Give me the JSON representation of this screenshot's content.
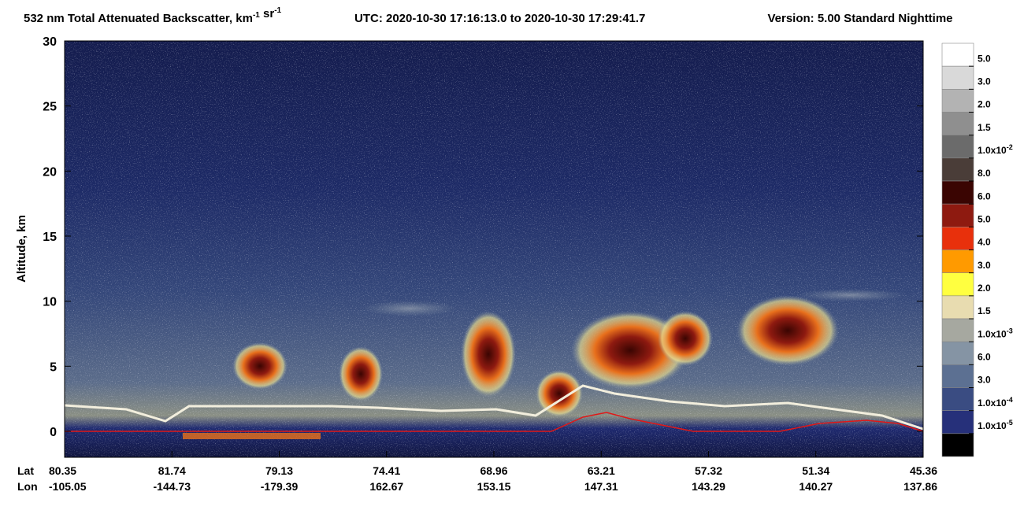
{
  "chart_data": {
    "type": "heatmap",
    "title_parts": [
      {
        "text": "532 nm Total Attenuated Backscatter, km"
      },
      {
        "sup": "-1"
      },
      {
        "text": " sr"
      },
      {
        "sup": "-1"
      }
    ],
    "time_range": "UTC:  2020-10-30 17:16:13.0  to  2020-10-30 17:29:41.7",
    "version": "Version: 5.00  Standard  Nighttime",
    "y_label": "Altitude, km",
    "ylim": [
      -2,
      30
    ],
    "yticks": [
      0,
      5,
      10,
      15,
      20,
      25,
      30
    ],
    "x_row_labels": [
      "Lat",
      "Lon"
    ],
    "lat": [
      "80.35",
      "81.74",
      "79.13",
      "74.41",
      "68.96",
      "63.21",
      "57.32",
      "51.34",
      "45.36"
    ],
    "lon": [
      "-105.05",
      "-144.73",
      "-179.39",
      "162.67",
      "153.15",
      "147.31",
      "143.29",
      "140.27",
      "137.86"
    ],
    "colorbar": {
      "colors": [
        "#ffffff",
        "#d9d9d9",
        "#b3b3b3",
        "#8f8f8f",
        "#6b6b6b",
        "#4a3d38",
        "#3a0502",
        "#8e1a10",
        "#e8300c",
        "#ff9a00",
        "#ffff40",
        "#e8dcb0",
        "#a6a8a0",
        "#8594a4",
        "#5c7092",
        "#3a4c82",
        "#26307a",
        "#000000"
      ],
      "labels": [
        "5.0",
        "3.0",
        "2.0",
        "1.5",
        {
          "base": "1.0x10",
          "exp": "-2"
        },
        "8.0",
        "6.0",
        "5.0",
        "4.0",
        "3.0",
        "2.0",
        "1.5",
        {
          "base": "1.0x10",
          "exp": "-3"
        },
        "6.0",
        "3.0",
        {
          "base": "1.0x10",
          "exp": "-4"
        },
        {
          "base": "1.0x10",
          "exp": "-5"
        }
      ]
    }
  }
}
